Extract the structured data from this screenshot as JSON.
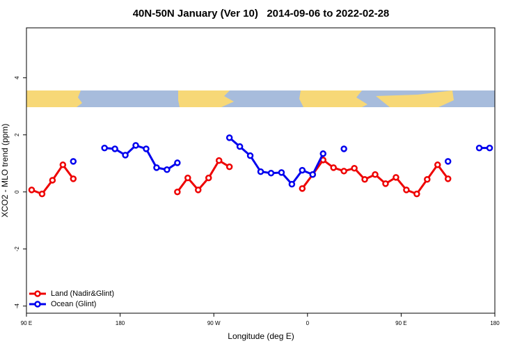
{
  "chart_data": {
    "type": "line",
    "title": "40N-50N January (Ver 10)   2014-09-06 to 2022-02-28",
    "xlabel": "Longitude (deg E)",
    "ylabel": "XCO2 - MLO trend (ppm)",
    "x": [
      -265,
      -255,
      -245,
      -235,
      -225,
      -215,
      -205,
      -195,
      -185,
      -175,
      -165,
      -155,
      -145,
      -135,
      -125,
      -115,
      -105,
      -95,
      -85,
      -75,
      -65,
      -55,
      -45,
      -35,
      -25,
      -15,
      -5,
      5,
      15,
      25,
      35,
      45,
      55,
      65,
      75,
      85,
      95,
      105,
      115,
      125,
      135,
      145,
      155,
      165,
      175
    ],
    "series": [
      {
        "name": "Land (Nadir&Glint)",
        "color": "#ee0000",
        "values": [
          0.07,
          -0.07,
          0.41,
          0.95,
          0.46,
          null,
          null,
          null,
          null,
          null,
          null,
          null,
          null,
          null,
          0,
          0.49,
          0.07,
          0.49,
          1.1,
          0.88,
          null,
          null,
          null,
          null,
          null,
          null,
          0.12,
          0.61,
          1.12,
          0.85,
          0.73,
          0.83,
          0.44,
          0.61,
          0.29,
          0.51,
          0.07,
          -0.07,
          0.44,
          0.95,
          0.46,
          null,
          null,
          null,
          null
        ]
      },
      {
        "name": "Ocean (Glint)",
        "color": "#0000ee",
        "values": [
          null,
          null,
          null,
          null,
          1.07,
          null,
          null,
          1.54,
          1.51,
          1.29,
          1.63,
          1.51,
          0.85,
          0.78,
          1.02,
          null,
          null,
          null,
          null,
          1.9,
          1.59,
          1.27,
          0.71,
          0.66,
          0.68,
          0.27,
          0.76,
          0.61,
          1.34,
          null,
          1.51,
          null,
          null,
          null,
          null,
          null,
          null,
          null,
          null,
          null,
          1.07,
          null,
          null,
          1.54,
          1.54
        ]
      }
    ],
    "xlim": [
      -270,
      180
    ],
    "xticks": [
      {
        "value": -270,
        "label": "90 E"
      },
      {
        "value": -180,
        "label": "180"
      },
      {
        "value": -90,
        "label": "90 W"
      },
      0,
      {
        "value": 90,
        "label": "90 E"
      },
      {
        "value": 180,
        "label": "180"
      }
    ],
    "ylim": [
      -4.25,
      5.75
    ],
    "yticks": [
      -4,
      -2,
      0,
      2,
      4
    ],
    "legend": "bottom-left"
  }
}
